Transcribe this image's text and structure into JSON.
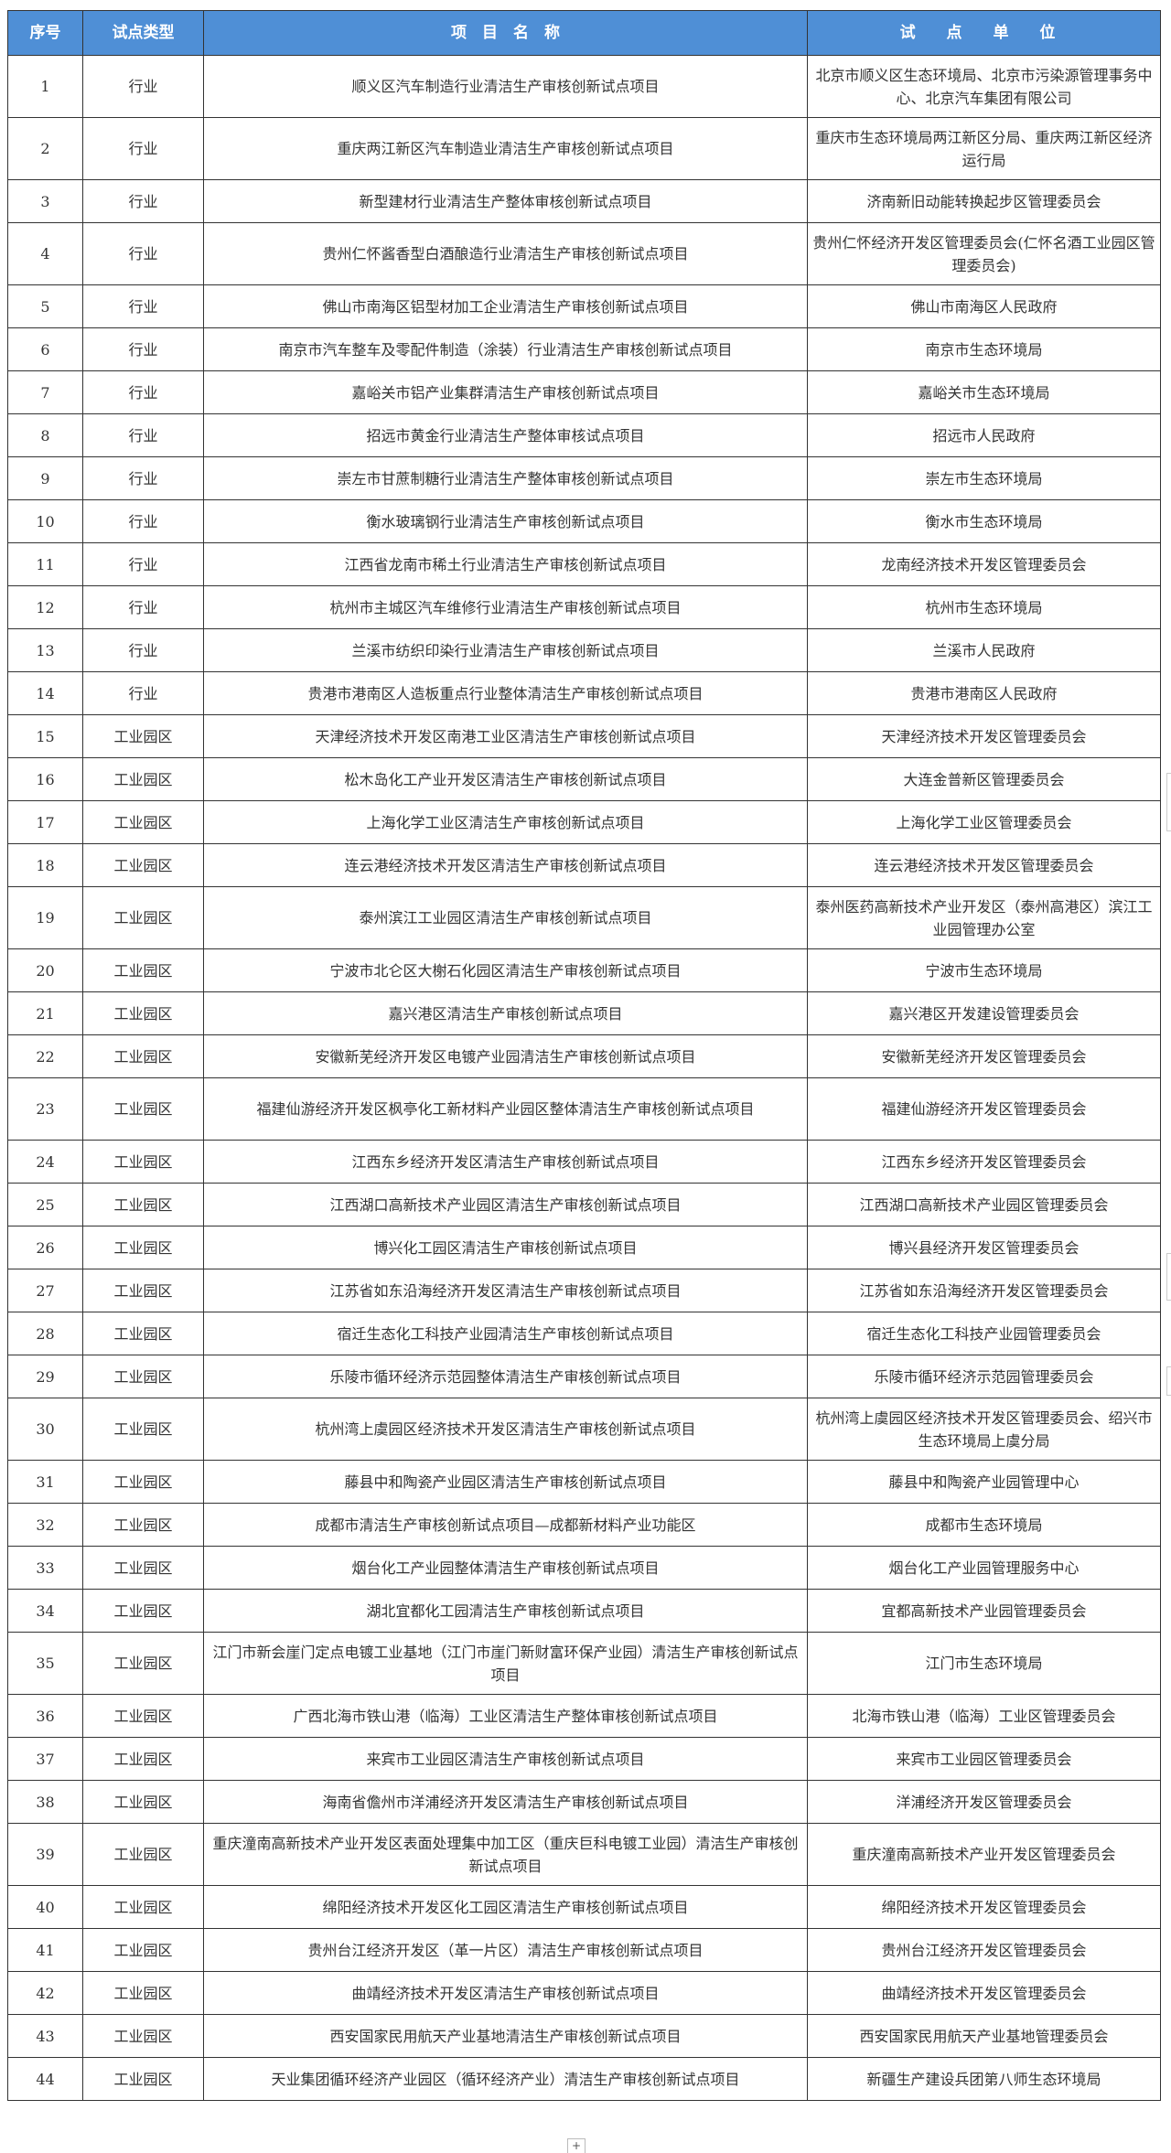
{
  "table": {
    "headers": [
      "序号",
      "试点类型",
      "项　目　名　称",
      "试 点 单 位"
    ],
    "rows": [
      {
        "no": "1",
        "type": "行业",
        "name": "顺义区汽车制造行业清洁生产审核创新试点项目",
        "unit": "北京市顺义区生态环境局、北京市污染源管理事务中心、北京汽车集团有限公司"
      },
      {
        "no": "2",
        "type": "行业",
        "name": "重庆两江新区汽车制造业清洁生产审核创新试点项目",
        "unit": "重庆市生态环境局两江新区分局、重庆两江新区经济运行局"
      },
      {
        "no": "3",
        "type": "行业",
        "name": "新型建材行业清洁生产整体审核创新试点项目",
        "unit": "济南新旧动能转换起步区管理委员会"
      },
      {
        "no": "4",
        "type": "行业",
        "name": "贵州仁怀酱香型白酒酿造行业清洁生产审核创新试点项目",
        "unit": "贵州仁怀经济开发区管理委员会(仁怀名酒工业园区管理委员会)"
      },
      {
        "no": "5",
        "type": "行业",
        "name": "佛山市南海区铝型材加工企业清洁生产审核创新试点项目",
        "unit": "佛山市南海区人民政府"
      },
      {
        "no": "6",
        "type": "行业",
        "name": "南京市汽车整车及零配件制造（涂装）行业清洁生产审核创新试点项目",
        "unit": "南京市生态环境局"
      },
      {
        "no": "7",
        "type": "行业",
        "name": "嘉峪关市铝产业集群清洁生产审核创新试点项目",
        "unit": "嘉峪关市生态环境局"
      },
      {
        "no": "8",
        "type": "行业",
        "name": "招远市黄金行业清洁生产整体审核试点项目",
        "unit": "招远市人民政府"
      },
      {
        "no": "9",
        "type": "行业",
        "name": "崇左市甘蔗制糖行业清洁生产整体审核创新试点项目",
        "unit": "崇左市生态环境局"
      },
      {
        "no": "10",
        "type": "行业",
        "name": "衡水玻璃钢行业清洁生产审核创新试点项目",
        "unit": "衡水市生态环境局"
      },
      {
        "no": "11",
        "type": "行业",
        "name": "江西省龙南市稀土行业清洁生产审核创新试点项目",
        "unit": "龙南经济技术开发区管理委员会"
      },
      {
        "no": "12",
        "type": "行业",
        "name": "杭州市主城区汽车维修行业清洁生产审核创新试点项目",
        "unit": "杭州市生态环境局"
      },
      {
        "no": "13",
        "type": "行业",
        "name": "兰溪市纺织印染行业清洁生产审核创新试点项目",
        "unit": "兰溪市人民政府"
      },
      {
        "no": "14",
        "type": "行业",
        "name": "贵港市港南区人造板重点行业整体清洁生产审核创新试点项目",
        "unit": "贵港市港南区人民政府"
      },
      {
        "no": "15",
        "type": "工业园区",
        "name": "天津经济技术开发区南港工业区清洁生产审核创新试点项目",
        "unit": "天津经济技术开发区管理委员会"
      },
      {
        "no": "16",
        "type": "工业园区",
        "name": "松木岛化工产业开发区清洁生产审核创新试点项目",
        "unit": "大连金普新区管理委员会"
      },
      {
        "no": "17",
        "type": "工业园区",
        "name": "上海化学工业区清洁生产审核创新试点项目",
        "unit": "上海化学工业区管理委员会"
      },
      {
        "no": "18",
        "type": "工业园区",
        "name": "连云港经济技术开发区清洁生产审核创新试点项目",
        "unit": "连云港经济技术开发区管理委员会"
      },
      {
        "no": "19",
        "type": "工业园区",
        "name": "泰州滨江工业园区清洁生产审核创新试点项目",
        "unit": "泰州医药高新技术产业开发区（泰州高港区）滨江工业园管理办公室"
      },
      {
        "no": "20",
        "type": "工业园区",
        "name": "宁波市北仑区大榭石化园区清洁生产审核创新试点项目",
        "unit": "宁波市生态环境局"
      },
      {
        "no": "21",
        "type": "工业园区",
        "name": "嘉兴港区清洁生产审核创新试点项目",
        "unit": "嘉兴港区开发建设管理委员会"
      },
      {
        "no": "22",
        "type": "工业园区",
        "name": "安徽新芜经济开发区电镀产业园清洁生产审核创新试点项目",
        "unit": "安徽新芜经济开发区管理委员会"
      },
      {
        "no": "23",
        "type": "工业园区",
        "name": "福建仙游经济开发区枫亭化工新材料产业园区整体清洁生产审核创新试点项目",
        "unit": "福建仙游经济开发区管理委员会"
      },
      {
        "no": "24",
        "type": "工业园区",
        "name": "江西东乡经济开发区清洁生产审核创新试点项目",
        "unit": "江西东乡经济开发区管理委员会"
      },
      {
        "no": "25",
        "type": "工业园区",
        "name": "江西湖口高新技术产业园区清洁生产审核创新试点项目",
        "unit": "江西湖口高新技术产业园区管理委员会"
      },
      {
        "no": "26",
        "type": "工业园区",
        "name": "博兴化工园区清洁生产审核创新试点项目",
        "unit": "博兴县经济开发区管理委员会"
      },
      {
        "no": "27",
        "type": "工业园区",
        "name": "江苏省如东沿海经济开发区清洁生产审核创新试点项目",
        "unit": "江苏省如东沿海经济开发区管理委员会"
      },
      {
        "no": "28",
        "type": "工业园区",
        "name": "宿迁生态化工科技产业园清洁生产审核创新试点项目",
        "unit": "宿迁生态化工科技产业园管理委员会"
      },
      {
        "no": "29",
        "type": "工业园区",
        "name": "乐陵市循环经济示范园整体清洁生产审核创新试点项目",
        "unit": "乐陵市循环经济示范园管理委员会"
      },
      {
        "no": "30",
        "type": "工业园区",
        "name": "杭州湾上虞园区经济技术开发区清洁生产审核创新试点项目",
        "unit": "杭州湾上虞园区经济技术开发区管理委员会、绍兴市生态环境局上虞分局"
      },
      {
        "no": "31",
        "type": "工业园区",
        "name": "藤县中和陶瓷产业园区清洁生产审核创新试点项目",
        "unit": "藤县中和陶瓷产业园管理中心"
      },
      {
        "no": "32",
        "type": "工业园区",
        "name": "成都市清洁生产审核创新试点项目—成都新材料产业功能区",
        "unit": "成都市生态环境局"
      },
      {
        "no": "33",
        "type": "工业园区",
        "name": "烟台化工产业园整体清洁生产审核创新试点项目",
        "unit": "烟台化工产业园管理服务中心"
      },
      {
        "no": "34",
        "type": "工业园区",
        "name": "湖北宜都化工园清洁生产审核创新试点项目",
        "unit": "宜都高新技术产业园管理委员会"
      },
      {
        "no": "35",
        "type": "工业园区",
        "name": "江门市新会崖门定点电镀工业基地（江门市崖门新财富环保产业园）清洁生产审核创新试点项目",
        "unit": "江门市生态环境局"
      },
      {
        "no": "36",
        "type": "工业园区",
        "name": "广西北海市铁山港（临海）工业区清洁生产整体审核创新试点项目",
        "unit": "北海市铁山港（临海）工业区管理委员会"
      },
      {
        "no": "37",
        "type": "工业园区",
        "name": "来宾市工业园区清洁生产审核创新试点项目",
        "unit": "来宾市工业园区管理委员会"
      },
      {
        "no": "38",
        "type": "工业园区",
        "name": "海南省儋州市洋浦经济开发区清洁生产审核创新试点项目",
        "unit": "洋浦经济开发区管理委员会"
      },
      {
        "no": "39",
        "type": "工业园区",
        "name": "重庆潼南高新技术产业开发区表面处理集中加工区（重庆巨科电镀工业园）清洁生产审核创新试点项目",
        "unit": "重庆潼南高新技术产业开发区管理委员会"
      },
      {
        "no": "40",
        "type": "工业园区",
        "name": "绵阳经济技术开发区化工园区清洁生产审核创新试点项目",
        "unit": "绵阳经济技术开发区管理委员会"
      },
      {
        "no": "41",
        "type": "工业园区",
        "name": "贵州台江经济开发区（革一片区）清洁生产审核创新试点项目",
        "unit": "贵州台江经济开发区管理委员会"
      },
      {
        "no": "42",
        "type": "工业园区",
        "name": "曲靖经济技术开发区清洁生产审核创新试点项目",
        "unit": "曲靖经济技术开发区管理委员会"
      },
      {
        "no": "43",
        "type": "工业园区",
        "name": "西安国家民用航天产业基地清洁生产审核创新试点项目",
        "unit": "西安国家民用航天产业基地管理委员会"
      },
      {
        "no": "44",
        "type": "工业园区",
        "name": "天业集团循环经济产业园区（循环经济产业）清洁生产审核创新试点项目",
        "unit": "新疆生产建设兵团第八师生态环境局"
      }
    ]
  },
  "add_button": "+",
  "colors": {
    "header_bg": "#4f8fd6",
    "header_text": "#ffffff",
    "border": "#333333"
  }
}
